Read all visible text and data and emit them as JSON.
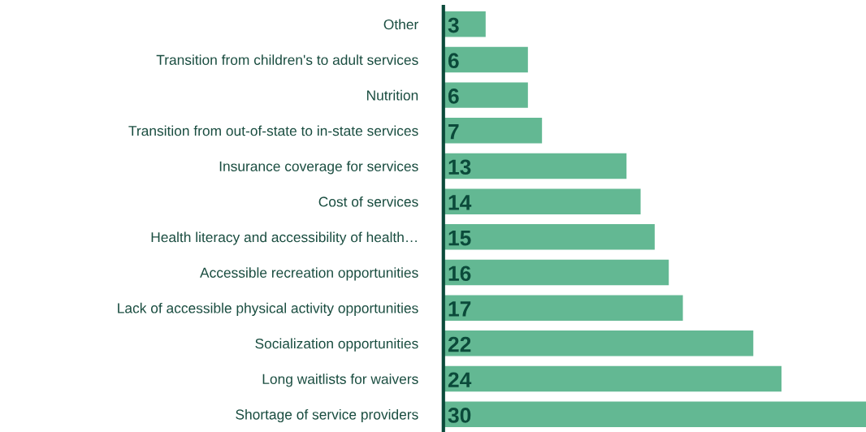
{
  "chart_data": {
    "type": "bar",
    "orientation": "horizontal",
    "categories": [
      "Other",
      "Transition from children's to adult services",
      "Nutrition",
      "Transition from out-of-state to in-state services",
      "Insurance coverage for services",
      "Cost of services",
      "Health literacy and accessibility of health…",
      "Accessible recreation opportunities",
      "Lack of accessible physical activity opportunities",
      "Socialization opportunities",
      "Long waitlists for waivers",
      "Shortage of service providers"
    ],
    "values": [
      3,
      6,
      6,
      7,
      13,
      14,
      15,
      16,
      17,
      22,
      24,
      30
    ],
    "color": "#63b893",
    "data_labels": true,
    "grid": false,
    "legend": false,
    "tick_labels": "y"
  }
}
